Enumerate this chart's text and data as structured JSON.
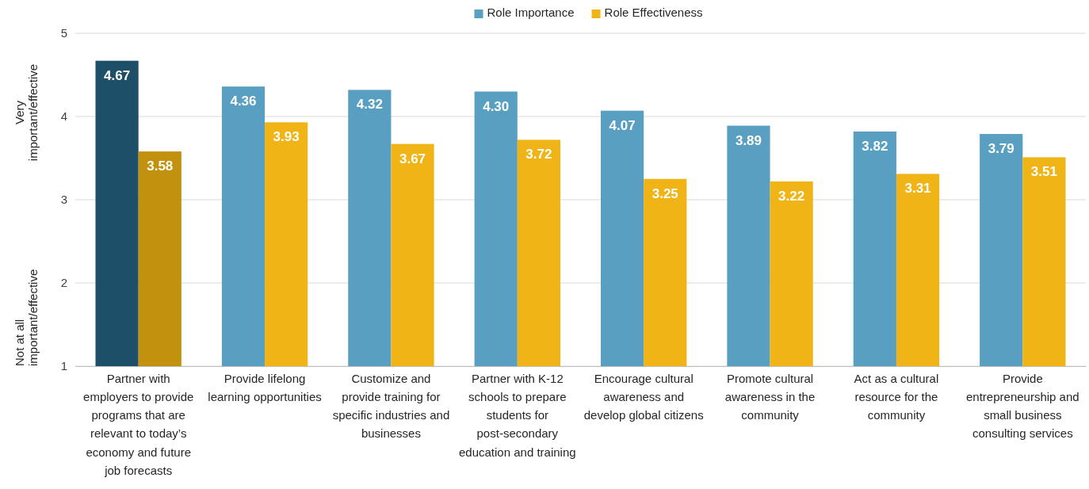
{
  "chart_data": {
    "type": "bar",
    "categories": [
      "Partner with employers to provide programs that are relevant to today’s economy and future job forecasts",
      "Provide lifelong learning opportunities",
      "Customize and provide training for specific industries and businesses",
      "Partner with K-12 schools to prepare students for post-secondary education and training",
      "Encourage cultural awareness and develop global citizens",
      "Promote cultural awareness in the community",
      "Act as a cultural resource for the community",
      "Provide entrepreneurship and small business consulting services"
    ],
    "series": [
      {
        "name": "Role Importance",
        "color": "#589fc1",
        "colors": [
          "#1d4f69",
          "#589fc1",
          "#589fc1",
          "#589fc1",
          "#589fc1",
          "#589fc1",
          "#589fc1",
          "#589fc1"
        ],
        "values": [
          4.67,
          4.36,
          4.32,
          4.3,
          4.07,
          3.89,
          3.82,
          3.79
        ],
        "value_labels": [
          "4.67",
          "4.36",
          "4.32",
          "4.30",
          "4.07",
          "3.89",
          "3.82",
          "3.79"
        ]
      },
      {
        "name": "Role Effectiveness",
        "color": "#f0b416",
        "colors": [
          "#c2910e",
          "#f0b416",
          "#f0b416",
          "#f0b416",
          "#f0b416",
          "#f0b416",
          "#f0b416",
          "#f0b416"
        ],
        "values": [
          3.58,
          3.93,
          3.67,
          3.72,
          3.25,
          3.22,
          3.31,
          3.51
        ],
        "value_labels": [
          "3.58",
          "3.93",
          "3.67",
          "3.72",
          "3.25",
          "3.22",
          "3.31",
          "3.51"
        ]
      }
    ],
    "ylim": [
      1,
      5
    ],
    "yticks": [
      1,
      2,
      3,
      4,
      5
    ],
    "grid": "y",
    "legend": "top",
    "annotations": [
      "Very important/effective",
      "Not at all important/effective"
    ]
  }
}
